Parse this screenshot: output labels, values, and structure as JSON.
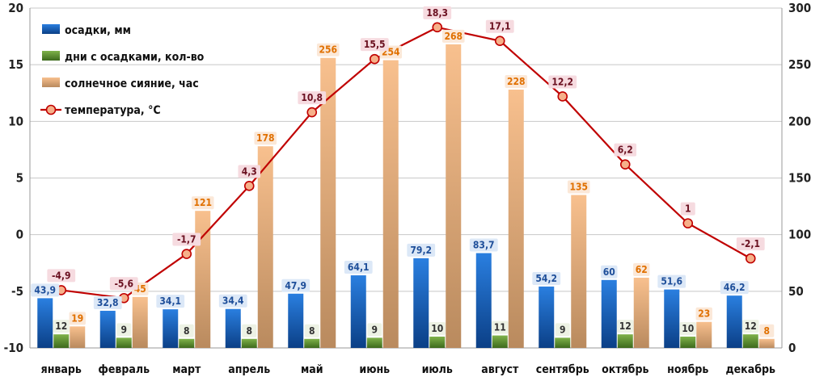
{
  "chart_data": {
    "type": "bar",
    "categories": [
      "январь",
      "февраль",
      "март",
      "апрель",
      "май",
      "июнь",
      "июль",
      "август",
      "сентябрь",
      "октябрь",
      "ноябрь",
      "декабрь"
    ],
    "series": [
      {
        "name": "осадки, мм",
        "kind": "bar",
        "axis": "right",
        "color": "#1565c0",
        "values": [
          43.9,
          32.8,
          34.1,
          34.4,
          47.9,
          64.1,
          79.2,
          83.7,
          54.2,
          60,
          51.6,
          46.2
        ],
        "labels": [
          "43,9",
          "32,8",
          "34,1",
          "34,4",
          "47,9",
          "64,1",
          "79,2",
          "83,7",
          "54,2",
          "60",
          "51,6",
          "46,2"
        ]
      },
      {
        "name": "дни с осадками, кол-во",
        "kind": "bar",
        "axis": "right",
        "color": "#5b8a2e",
        "values": [
          12,
          9,
          8,
          8,
          8,
          9,
          10,
          11,
          9,
          12,
          10,
          12
        ],
        "labels": [
          "12",
          "9",
          "8",
          "8",
          "8",
          "9",
          "10",
          "11",
          "9",
          "12",
          "10",
          "12"
        ]
      },
      {
        "name": "солнечное сияние, час",
        "kind": "bar",
        "axis": "right",
        "color": "#f2a464",
        "values": [
          19,
          45,
          121,
          178,
          256,
          254,
          268,
          228,
          135,
          62,
          23,
          8
        ],
        "labels": [
          "19",
          "45",
          "121",
          "178",
          "256",
          "254",
          "268",
          "228",
          "135",
          "62",
          "23",
          "8"
        ]
      },
      {
        "name": "температура, °С",
        "kind": "line",
        "axis": "left",
        "color": "#c00000",
        "values": [
          -4.9,
          -5.6,
          -1.7,
          4.3,
          10.8,
          15.5,
          18.3,
          17.1,
          12.2,
          6.2,
          1,
          -2.1
        ],
        "labels": [
          "-4,9",
          "-5,6",
          "-1,7",
          "4,3",
          "10,8",
          "15,5",
          "18,3",
          "17,1",
          "12,2",
          "6,2",
          "1",
          "-2,1"
        ]
      }
    ],
    "y_left": {
      "min": -10,
      "max": 20,
      "ticks": [
        "-10",
        "-5",
        "0",
        "5",
        "10",
        "15",
        "20"
      ]
    },
    "y_right": {
      "min": 0,
      "max": 300,
      "ticks": [
        "0",
        "50",
        "100",
        "150",
        "200",
        "250",
        "300"
      ]
    },
    "grid": true,
    "legend": "top-left"
  }
}
